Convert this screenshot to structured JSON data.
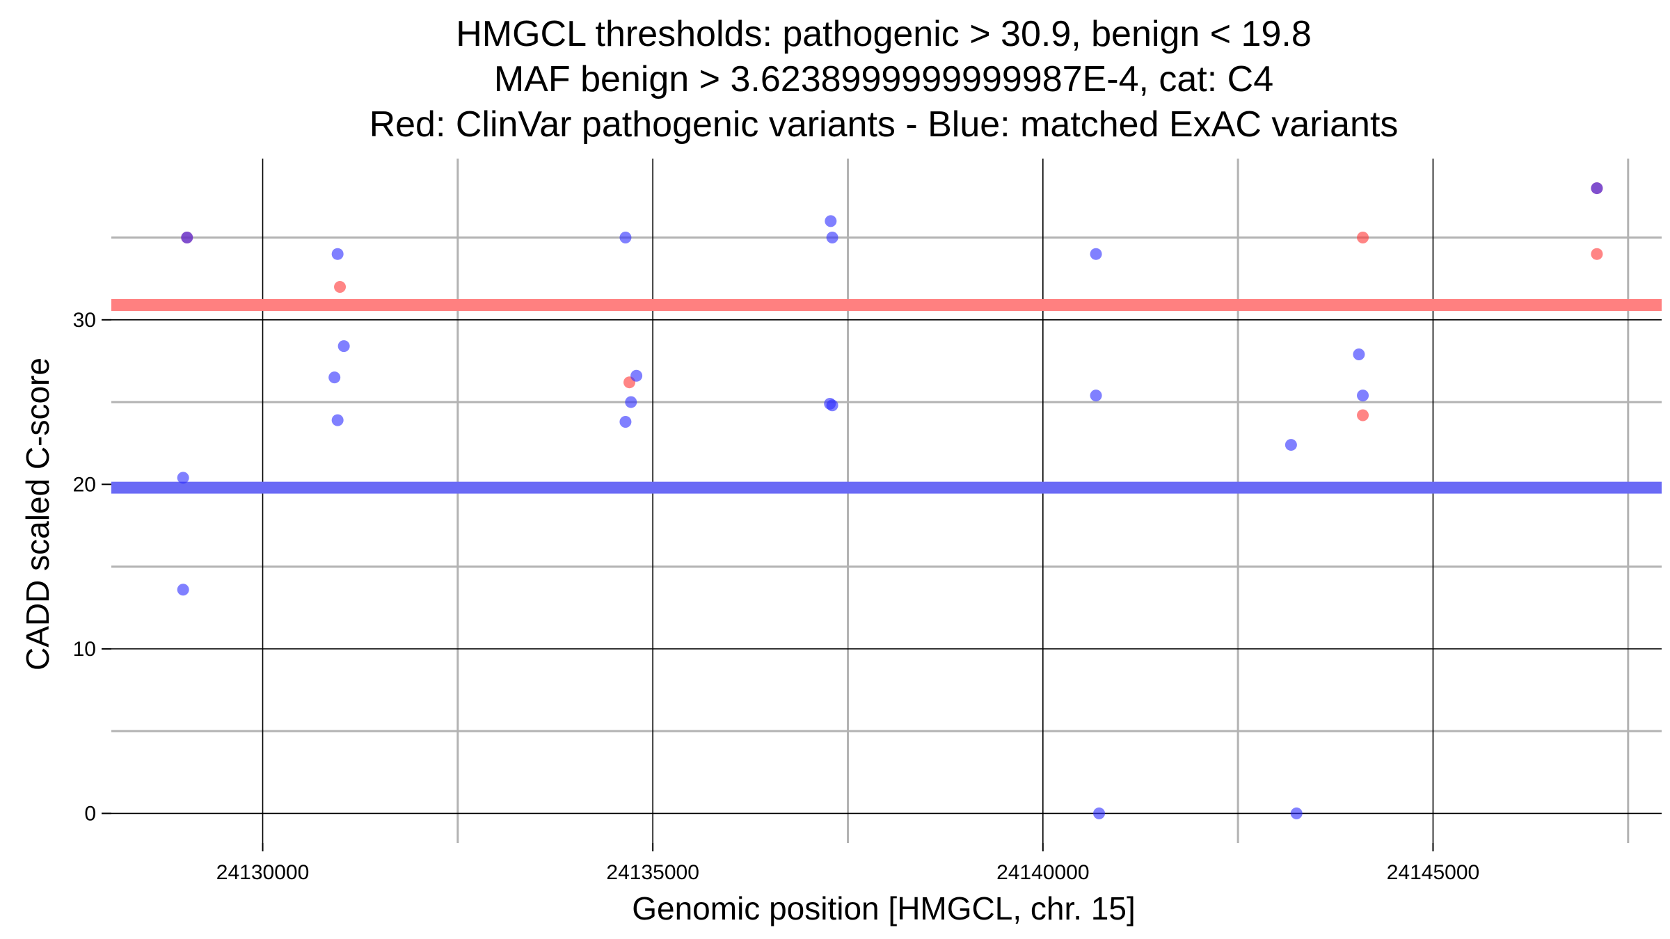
{
  "chart_data": {
    "type": "scatter",
    "title_lines": [
      "HMGCL thresholds: pathogenic > 30.9, benign < 19.8",
      "MAF benign > 3.6238999999999987E-4, cat: C4",
      "Red: ClinVar pathogenic variants - Blue: matched ExAC variants"
    ],
    "xlabel": "Genomic position [HMGCL, chr. 15]",
    "ylabel": "CADD scaled C-score",
    "xlim": [
      24128060,
      24147930
    ],
    "ylim": [
      -1.8,
      39.8
    ],
    "x_major_ticks": [
      24130000,
      24135000,
      24140000,
      24145000
    ],
    "x_major_tick_labels": [
      "24130000",
      "24135000",
      "24140000",
      "24145000"
    ],
    "x_minor_gridlines": [
      24132500,
      24137500,
      24142500,
      24147500
    ],
    "y_major_ticks": [
      0,
      10,
      20,
      30
    ],
    "y_major_tick_labels": [
      "0",
      "10",
      "20",
      "30"
    ],
    "y_minor_gridlines": [
      5,
      15,
      25,
      35
    ],
    "grid": true,
    "thresholds": [
      {
        "name": "pathogenic",
        "value": 30.9,
        "color": "#ff8080"
      },
      {
        "name": "benign",
        "value": 19.8,
        "color": "#6a6af5"
      }
    ],
    "series": [
      {
        "name": "ClinVar pathogenic variants",
        "color": "#ff3333",
        "points": [
          {
            "x": 24129030,
            "y": 35.0
          },
          {
            "x": 24130990,
            "y": 32.0
          },
          {
            "x": 24134700,
            "y": 26.2
          },
          {
            "x": 24144100,
            "y": 35.0
          },
          {
            "x": 24144100,
            "y": 24.2
          },
          {
            "x": 24147100,
            "y": 38.0
          },
          {
            "x": 24147100,
            "y": 34.0
          }
        ]
      },
      {
        "name": "matched ExAC variants",
        "color": "#2b2bff",
        "points": [
          {
            "x": 24129030,
            "y": 35.0
          },
          {
            "x": 24128980,
            "y": 20.4
          },
          {
            "x": 24128980,
            "y": 13.6
          },
          {
            "x": 24130960,
            "y": 34.0
          },
          {
            "x": 24131040,
            "y": 28.4
          },
          {
            "x": 24130920,
            "y": 26.5
          },
          {
            "x": 24130960,
            "y": 23.9
          },
          {
            "x": 24134650,
            "y": 35.0
          },
          {
            "x": 24134790,
            "y": 26.6
          },
          {
            "x": 24134720,
            "y": 25.0
          },
          {
            "x": 24134650,
            "y": 23.8
          },
          {
            "x": 24137280,
            "y": 36.0
          },
          {
            "x": 24137300,
            "y": 35.0
          },
          {
            "x": 24137270,
            "y": 24.9
          },
          {
            "x": 24137300,
            "y": 24.8
          },
          {
            "x": 24140680,
            "y": 34.0
          },
          {
            "x": 24140680,
            "y": 25.4
          },
          {
            "x": 24140720,
            "y": 0.0
          },
          {
            "x": 24143180,
            "y": 22.4
          },
          {
            "x": 24143250,
            "y": 0.0
          },
          {
            "x": 24144050,
            "y": 27.9
          },
          {
            "x": 24144100,
            "y": 25.4
          },
          {
            "x": 24147100,
            "y": 38.0
          }
        ]
      }
    ]
  }
}
